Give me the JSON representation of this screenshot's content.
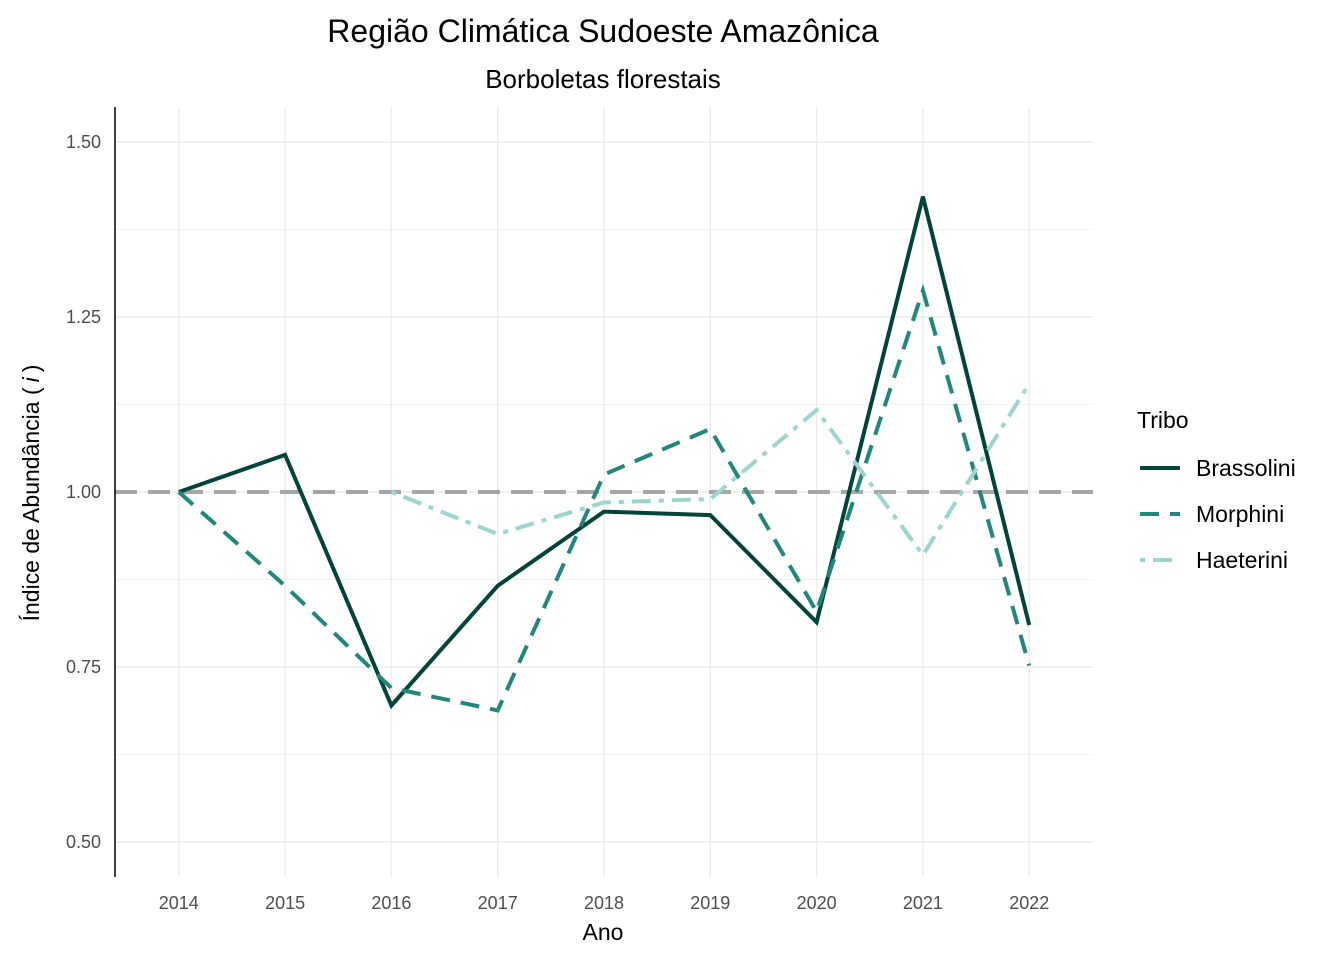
{
  "chart_data": {
    "type": "line",
    "title": "Região Climática Sudoeste Amazônica",
    "subtitle": "Borboletas florestais",
    "xlabel": "Ano",
    "ylabel_main": "Índice de Abundância (",
    "ylabel_italic": "i",
    "ylabel_end": ")",
    "x": [
      "2014",
      "2015",
      "2016",
      "2017",
      "2018",
      "2019",
      "2020",
      "2021",
      "2022"
    ],
    "y_ticks": [
      "0.50",
      "0.75",
      "1.00",
      "1.25",
      "1.50"
    ],
    "ylim": [
      0.45,
      1.55
    ],
    "reference_line": 1.0,
    "grid": true,
    "legend_title": "Tribo",
    "legend_position": "right",
    "series": [
      {
        "name": "Brassolini",
        "color": "#00443a",
        "dash": "solid",
        "values": [
          1.0,
          1.053,
          0.695,
          0.866,
          0.972,
          0.967,
          0.814,
          1.422,
          0.81
        ]
      },
      {
        "name": "Morphini",
        "color": "#21877c",
        "dash": "dashed",
        "values": [
          1.0,
          0.866,
          0.72,
          0.688,
          1.025,
          1.09,
          0.829,
          1.288,
          0.752
        ]
      },
      {
        "name": "Haeterini",
        "color": "#9bd5cc",
        "dash": "dotdash",
        "values": [
          null,
          null,
          1.0,
          0.94,
          0.985,
          0.99,
          1.117,
          0.91,
          1.155
        ]
      }
    ]
  }
}
